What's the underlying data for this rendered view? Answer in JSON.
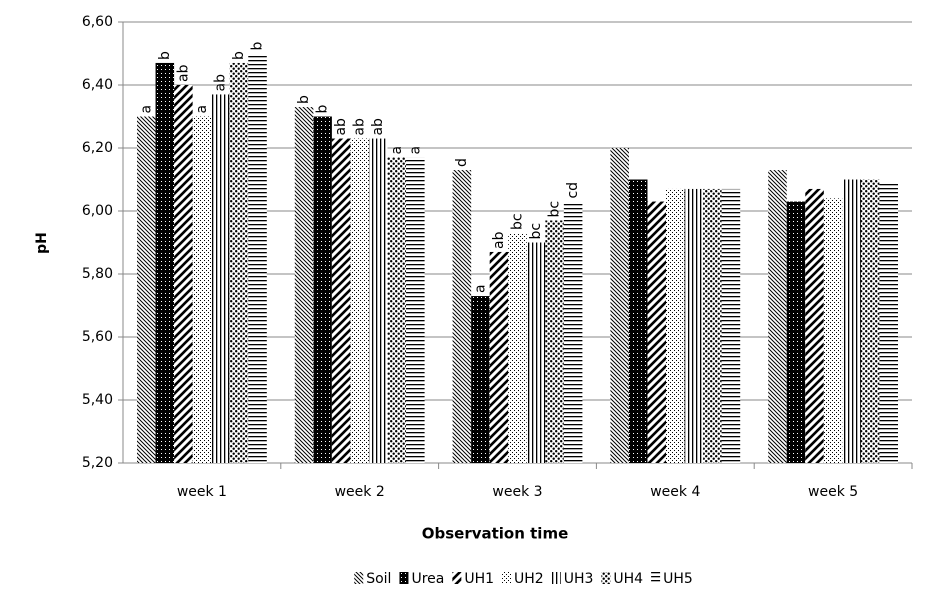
{
  "chart_data": {
    "type": "bar",
    "y_label": "pH",
    "x_label": "Observation time",
    "categories": [
      "week 1",
      "week 2",
      "week 3",
      "week 4",
      "week 5"
    ],
    "series": [
      {
        "name": "Soil",
        "color": "#000000",
        "pattern": "back-diagonal",
        "values": [
          6.3,
          6.33,
          6.13,
          6.2,
          6.13
        ],
        "letters": [
          "a",
          "b",
          "d",
          null,
          null
        ]
      },
      {
        "name": "Urea",
        "color": "#000000",
        "pattern": "solid-dotted",
        "values": [
          6.47,
          6.3,
          5.73,
          6.1,
          6.03
        ],
        "letters": [
          "b",
          "b",
          "a",
          null,
          null
        ]
      },
      {
        "name": "UH1",
        "color": "#000000",
        "pattern": "wide-diagonal",
        "values": [
          6.4,
          6.23,
          5.87,
          6.03,
          6.07
        ],
        "letters": [
          "ab",
          "ab",
          "ab",
          null,
          null
        ]
      },
      {
        "name": "UH2",
        "color": "#000000",
        "pattern": "fine-dots",
        "values": [
          6.3,
          6.23,
          5.93,
          6.07,
          6.04
        ],
        "letters": [
          "a",
          "ab",
          "bc",
          null,
          null
        ]
      },
      {
        "name": "UH3",
        "color": "#000000",
        "pattern": "vertical",
        "values": [
          6.37,
          6.23,
          5.9,
          6.07,
          6.1
        ],
        "letters": [
          "ab",
          "ab",
          "bc",
          null,
          null
        ]
      },
      {
        "name": "UH4",
        "color": "#000000",
        "pattern": "dots",
        "values": [
          6.47,
          6.17,
          5.97,
          6.07,
          6.1
        ],
        "letters": [
          "b",
          "a",
          "bc",
          null,
          null
        ]
      },
      {
        "name": "UH5",
        "color": "#000000",
        "pattern": "horizontal",
        "values": [
          6.5,
          6.17,
          6.03,
          6.07,
          6.09
        ],
        "letters": [
          "b",
          "a",
          "cd",
          null,
          null
        ]
      }
    ],
    "ylim": [
      5.2,
      6.6
    ],
    "yticks": [
      {
        "value": 5.2,
        "label": "5,20"
      },
      {
        "value": 5.4,
        "label": "5,40"
      },
      {
        "value": 5.6,
        "label": "5,60"
      },
      {
        "value": 5.8,
        "label": "5,80"
      },
      {
        "value": 6.0,
        "label": "6,00"
      },
      {
        "value": 6.2,
        "label": "6,20"
      },
      {
        "value": 6.4,
        "label": "6,40"
      },
      {
        "value": 6.6,
        "label": "6,60"
      }
    ],
    "grid": true,
    "legend": "bottom"
  }
}
